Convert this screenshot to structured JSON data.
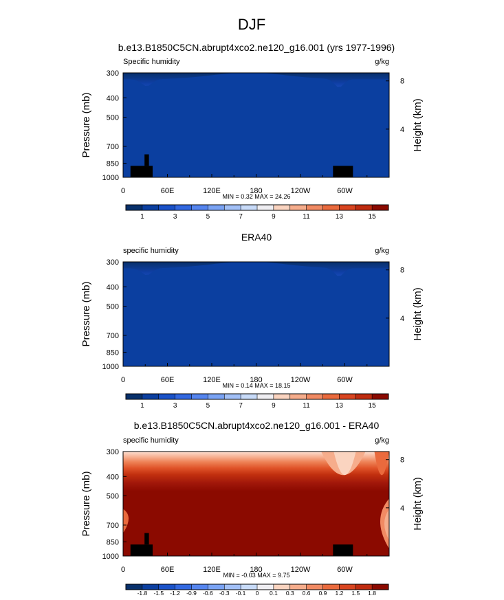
{
  "figure_title": "DJF",
  "chart_data": [
    {
      "type": "heatmap",
      "title": "b.e13.B1850C5CN.abrupt4xco2.ne120_g16.001 (yrs 1977-1996)",
      "left_label": "Specific humidity",
      "right_label": "g/kg",
      "ylabel": "Pressure (mb)",
      "ylabel_right": "Height (km)",
      "x_ticks": [
        "0",
        "60E",
        "120E",
        "180",
        "120W",
        "60W"
      ],
      "x_tick_lons": [
        0,
        60,
        120,
        180,
        240,
        300
      ],
      "xlim": [
        0,
        360
      ],
      "y_ticks": [
        "300",
        "400",
        "500",
        "700",
        "850",
        "1000"
      ],
      "y_tick_values": [
        300,
        400,
        500,
        700,
        850,
        1000
      ],
      "ylim": [
        1000,
        300
      ],
      "height_ticks": [
        "8",
        "4"
      ],
      "height_tick_km": [
        8,
        4
      ],
      "stats": "MIN =   0.32   MAX =  24.26",
      "min": 0.32,
      "max": 24.26,
      "palette": [
        "#08306b",
        "#0b3fa0",
        "#1a52c8",
        "#3268e0",
        "#5585ef",
        "#7aa3f4",
        "#a2c0f7",
        "#c8dbf9",
        "#efeef2",
        "#fad4c0",
        "#f6ad8c",
        "#f18a63",
        "#ea6a3d",
        "#d94520",
        "#bf2b0f",
        "#8b0a00"
      ],
      "colorbar_labels": [
        "1",
        "3",
        "5",
        "7",
        "9",
        "11",
        "13",
        "15"
      ]
    },
    {
      "type": "heatmap",
      "title": "ERA40",
      "left_label": "specific humidity",
      "right_label": "g/kg",
      "ylabel": "Pressure (mb)",
      "ylabel_right": "Height (km)",
      "x_ticks": [
        "0",
        "60E",
        "120E",
        "180",
        "120W",
        "60W"
      ],
      "x_tick_lons": [
        0,
        60,
        120,
        180,
        240,
        300
      ],
      "xlim": [
        0,
        360
      ],
      "y_ticks": [
        "300",
        "400",
        "500",
        "700",
        "850",
        "1000"
      ],
      "y_tick_values": [
        300,
        400,
        500,
        700,
        850,
        1000
      ],
      "ylim": [
        1000,
        300
      ],
      "height_ticks": [
        "8",
        "4"
      ],
      "height_tick_km": [
        8,
        4
      ],
      "stats": "MIN =   0.14   MAX =  18.15",
      "min": 0.14,
      "max": 18.15,
      "palette": [
        "#08306b",
        "#0b3fa0",
        "#1a52c8",
        "#3268e0",
        "#5585ef",
        "#7aa3f4",
        "#a2c0f7",
        "#c8dbf9",
        "#efeef2",
        "#fad4c0",
        "#f6ad8c",
        "#f18a63",
        "#ea6a3d",
        "#d94520",
        "#bf2b0f",
        "#8b0a00"
      ],
      "colorbar_labels": [
        "1",
        "3",
        "5",
        "7",
        "9",
        "11",
        "13",
        "15"
      ]
    },
    {
      "type": "heatmap",
      "title": "b.e13.B1850C5CN.abrupt4xco2.ne120_g16.001 - ERA40",
      "left_label": "specific humidity",
      "right_label": "g/kg",
      "ylabel": "Pressure (mb)",
      "ylabel_right": "Height (km)",
      "x_ticks": [
        "0",
        "60E",
        "120E",
        "180",
        "120W",
        "60W"
      ],
      "x_tick_lons": [
        0,
        60,
        120,
        180,
        240,
        300
      ],
      "xlim": [
        0,
        360
      ],
      "y_ticks": [
        "300",
        "400",
        "500",
        "700",
        "850",
        "1000"
      ],
      "y_tick_values": [
        300,
        400,
        500,
        700,
        850,
        1000
      ],
      "ylim": [
        1000,
        300
      ],
      "height_ticks": [
        "8",
        "4"
      ],
      "height_tick_km": [
        8,
        4
      ],
      "stats": "MIN = -0.03   MAX =  9.75",
      "min": -0.03,
      "max": 9.75,
      "palette": [
        "#08306b",
        "#0b3fa0",
        "#1a52c8",
        "#3268e0",
        "#5585ef",
        "#7aa3f4",
        "#a2c0f7",
        "#c8dbf9",
        "#efeef2",
        "#fad4c0",
        "#f6ad8c",
        "#f18a63",
        "#ea6a3d",
        "#d94520",
        "#bf2b0f",
        "#8b0a00"
      ],
      "colorbar_labels": [
        "-1.8",
        "-1.5",
        "-1.2",
        "-0.9",
        "-0.6",
        "-0.3",
        "-0.1",
        "0",
        "0.1",
        "0.3",
        "0.6",
        "0.9",
        "1.2",
        "1.5",
        "1.8"
      ]
    }
  ]
}
